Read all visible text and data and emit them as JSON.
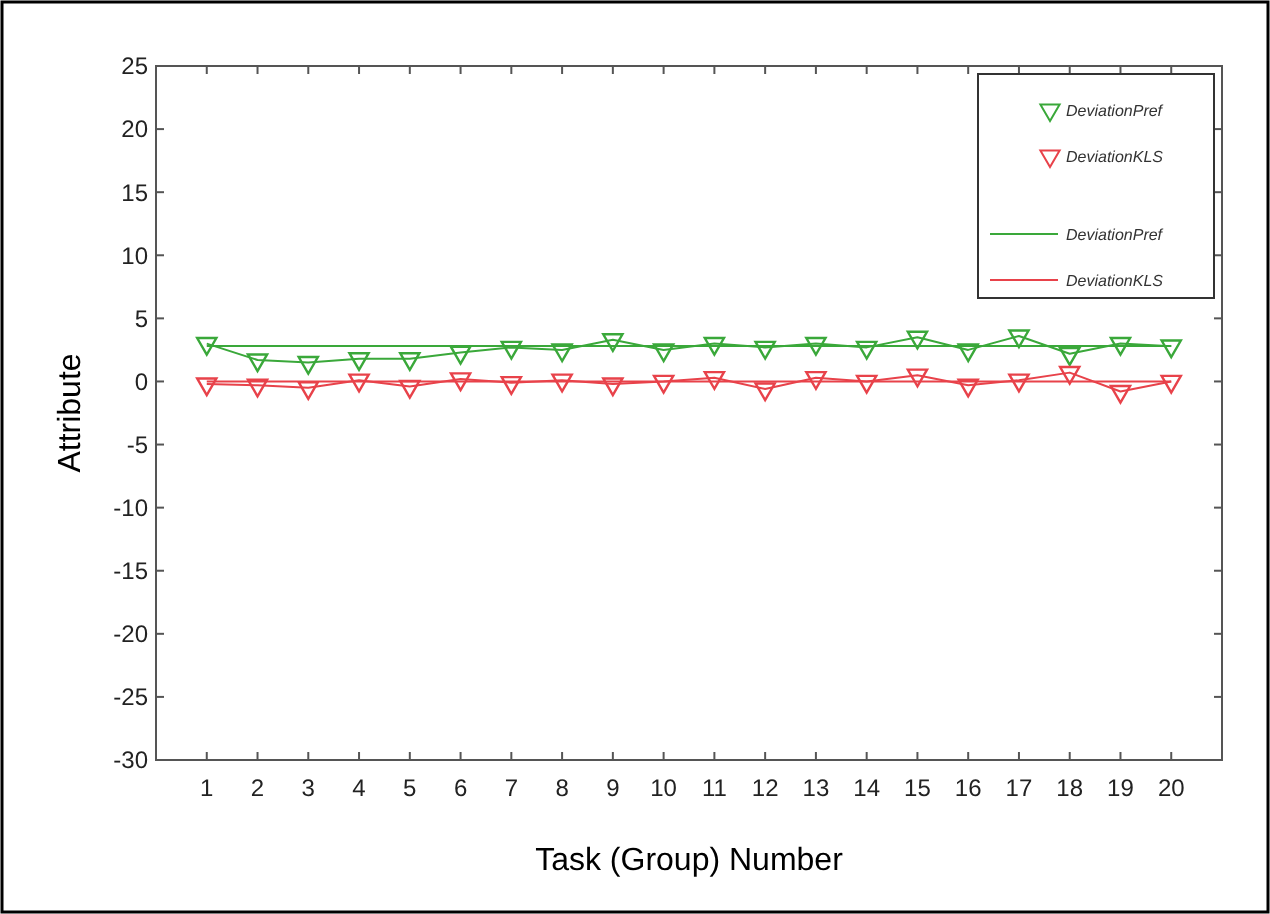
{
  "chart_data": {
    "type": "line",
    "xlabel": "Task (Group) Number",
    "ylabel": "Attribute",
    "x": [
      1,
      2,
      3,
      4,
      5,
      6,
      7,
      8,
      9,
      10,
      11,
      12,
      13,
      14,
      15,
      16,
      17,
      18,
      19,
      20
    ],
    "series": [
      {
        "name": "DeviationPref",
        "color": "#3aa83a",
        "marker": "triangle",
        "values": [
          3.0,
          1.7,
          1.5,
          1.8,
          1.8,
          2.3,
          2.7,
          2.5,
          3.3,
          2.5,
          3.0,
          2.7,
          3.0,
          2.7,
          3.5,
          2.5,
          3.6,
          2.2,
          3.0,
          2.8
        ]
      },
      {
        "name": "DeviationKLS",
        "color": "#e8424a",
        "marker": "triangle",
        "values": [
          -0.2,
          -0.3,
          -0.5,
          0.1,
          -0.4,
          0.2,
          -0.1,
          0.1,
          -0.2,
          0,
          0.3,
          -0.6,
          0.3,
          0,
          0.5,
          -0.3,
          0.1,
          0.7,
          -0.8,
          0
        ]
      }
    ],
    "ref_lines": [
      {
        "axis": "y",
        "value": 2.8,
        "label": "DeviationPref",
        "color": "#3aa83a"
      },
      {
        "axis": "y",
        "value": 0,
        "label": "DeviationKLS",
        "color": "#e8424a"
      }
    ],
    "xlim": [
      0,
      21
    ],
    "xticks": [
      1,
      2,
      3,
      4,
      5,
      6,
      7,
      8,
      9,
      10,
      11,
      12,
      13,
      14,
      15,
      16,
      17,
      18,
      19,
      20
    ],
    "ylim": [
      -30,
      25
    ],
    "yticks": [
      -30,
      -25,
      -20,
      -15,
      -10,
      -5,
      0,
      5,
      10,
      15,
      20,
      25
    ],
    "grid": false,
    "legend": "top right"
  }
}
